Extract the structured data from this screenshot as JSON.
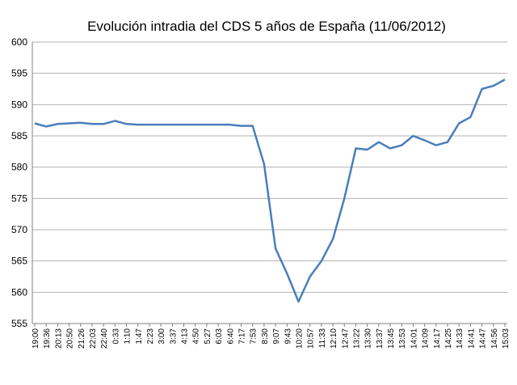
{
  "chart_data": {
    "type": "line",
    "title": "Evolución intradia del CDS 5 años de España (11/06/2012)",
    "xlabel": "",
    "ylabel": "",
    "ylim": [
      555,
      600
    ],
    "yticks": [
      555,
      560,
      565,
      570,
      575,
      580,
      585,
      590,
      595,
      600
    ],
    "grid": true,
    "legend": "none",
    "color": "#4a7ebb",
    "categories": [
      "19:00",
      "19:36",
      "20:13",
      "20:50",
      "21:26",
      "22:03",
      "22:40",
      "0:33",
      "1:10",
      "1:47",
      "2:23",
      "3:00",
      "3:37",
      "4:13",
      "4:50",
      "5:27",
      "6:03",
      "6:40",
      "7:17",
      "7:53",
      "8:30",
      "9:07",
      "9:43",
      "10:20",
      "10:57",
      "11:33",
      "12:10",
      "12:47",
      "13:22",
      "13:30",
      "13:37",
      "13:45",
      "13:53",
      "14:01",
      "14:09",
      "14:17",
      "14:25",
      "14:33",
      "14:41",
      "14:47",
      "14:56",
      "15:03"
    ],
    "series": [
      {
        "values": [
          587.0,
          586.5,
          586.9,
          587.0,
          587.1,
          586.9,
          586.9,
          587.4,
          586.9,
          586.8,
          586.8,
          586.8,
          586.8,
          586.8,
          586.8,
          586.8,
          586.8,
          586.8,
          586.6,
          586.6,
          580.5,
          567.0,
          563.0,
          558.5,
          562.5,
          565.0,
          568.5,
          575.0,
          583.0,
          582.8,
          584.0,
          583.0,
          583.5,
          585.0,
          584.3,
          583.5,
          584.0,
          587.0,
          588.0,
          592.5,
          593.0,
          594.0
        ]
      }
    ]
  }
}
